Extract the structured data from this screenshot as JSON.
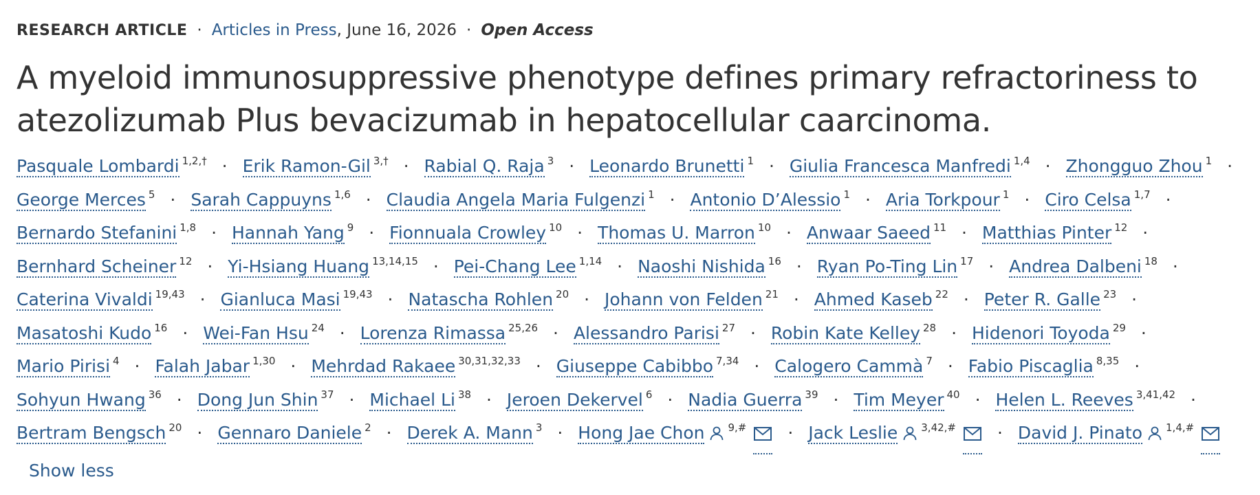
{
  "meta": {
    "article_type": "RESEARCH ARTICLE",
    "journal_section": "Articles in Press",
    "date": ", June 16, 2026",
    "access": "Open Access"
  },
  "title": "A myeloid immunosuppressive phenotype defines primary refractoriness to atezolizumab Plus bevacizumab in hepatocellular caarcinoma.",
  "authors": [
    {
      "name": "Pasquale Lombardi",
      "aff": "1,2,†"
    },
    {
      "name": "Erik Ramon-Gil",
      "aff": "3,†"
    },
    {
      "name": "Rabial Q. Raja",
      "aff": "3"
    },
    {
      "name": "Leonardo Brunetti",
      "aff": "1"
    },
    {
      "name": "Giulia Francesca Manfredi",
      "aff": "1,4"
    },
    {
      "name": "Zhongguo Zhou",
      "aff": "1"
    },
    {
      "name": "George Merces",
      "aff": "5"
    },
    {
      "name": "Sarah Cappuyns",
      "aff": "1,6"
    },
    {
      "name": "Claudia Angela Maria Fulgenzi",
      "aff": "1"
    },
    {
      "name": "Antonio D’Alessio",
      "aff": "1"
    },
    {
      "name": "Aria Torkpour",
      "aff": "1"
    },
    {
      "name": "Ciro Celsa",
      "aff": "1,7"
    },
    {
      "name": "Bernardo Stefanini",
      "aff": "1,8"
    },
    {
      "name": "Hannah Yang",
      "aff": "9"
    },
    {
      "name": "Fionnuala Crowley",
      "aff": "10"
    },
    {
      "name": "Thomas U. Marron",
      "aff": "10"
    },
    {
      "name": "Anwaar Saeed",
      "aff": "11"
    },
    {
      "name": "Matthias Pinter",
      "aff": "12"
    },
    {
      "name": "Bernhard Scheiner",
      "aff": "12"
    },
    {
      "name": "Yi-Hsiang Huang",
      "aff": "13,14,15"
    },
    {
      "name": "Pei-Chang Lee",
      "aff": "1,14"
    },
    {
      "name": "Naoshi Nishida",
      "aff": "16"
    },
    {
      "name": "Ryan Po-Ting Lin",
      "aff": "17"
    },
    {
      "name": "Andrea Dalbeni",
      "aff": "18"
    },
    {
      "name": "Caterina Vivaldi",
      "aff": "19,43"
    },
    {
      "name": "Gianluca Masi",
      "aff": "19,43"
    },
    {
      "name": "Natascha Rohlen",
      "aff": "20"
    },
    {
      "name": "Johann von Felden",
      "aff": "21"
    },
    {
      "name": "Ahmed Kaseb",
      "aff": "22"
    },
    {
      "name": "Peter R. Galle",
      "aff": "23"
    },
    {
      "name": "Masatoshi Kudo",
      "aff": "16"
    },
    {
      "name": "Wei-Fan Hsu",
      "aff": "24"
    },
    {
      "name": "Lorenza Rimassa",
      "aff": "25,26"
    },
    {
      "name": "Alessandro Parisi",
      "aff": "27"
    },
    {
      "name": "Robin Kate Kelley",
      "aff": "28"
    },
    {
      "name": "Hidenori Toyoda",
      "aff": "29"
    },
    {
      "name": "Mario Pirisi",
      "aff": "4"
    },
    {
      "name": "Falah Jabar",
      "aff": "1,30"
    },
    {
      "name": "Mehrdad Rakaee",
      "aff": "30,31,32,33"
    },
    {
      "name": "Giuseppe Cabibbo",
      "aff": "7,34"
    },
    {
      "name": "Calogero Cammà",
      "aff": "7"
    },
    {
      "name": "Fabio Piscaglia",
      "aff": "8,35"
    },
    {
      "name": "Sohyun Hwang",
      "aff": "36"
    },
    {
      "name": "Dong Jun Shin",
      "aff": "37"
    },
    {
      "name": "Michael Li",
      "aff": "38"
    },
    {
      "name": "Jeroen Dekervel",
      "aff": "6"
    },
    {
      "name": "Nadia Guerra",
      "aff": "39"
    },
    {
      "name": "Tim Meyer",
      "aff": "40"
    },
    {
      "name": "Helen L. Reeves",
      "aff": "3,41,42"
    },
    {
      "name": "Bertram Bengsch",
      "aff": "20"
    },
    {
      "name": "Gennaro Daniele",
      "aff": "2"
    },
    {
      "name": "Derek A. Mann",
      "aff": "3"
    },
    {
      "name": "Hong Jae Chon",
      "aff": "9,#",
      "corresponding": true
    },
    {
      "name": "Jack Leslie",
      "aff": "3,42,#",
      "corresponding": true
    },
    {
      "name": "David J. Pinato",
      "aff": "1,4,#",
      "corresponding": true
    }
  ],
  "show_less_label": "Show less",
  "icons": {
    "person": "person-icon",
    "mail": "mail-icon"
  },
  "colors": {
    "link": "#2a5a8c",
    "text": "#333333"
  }
}
